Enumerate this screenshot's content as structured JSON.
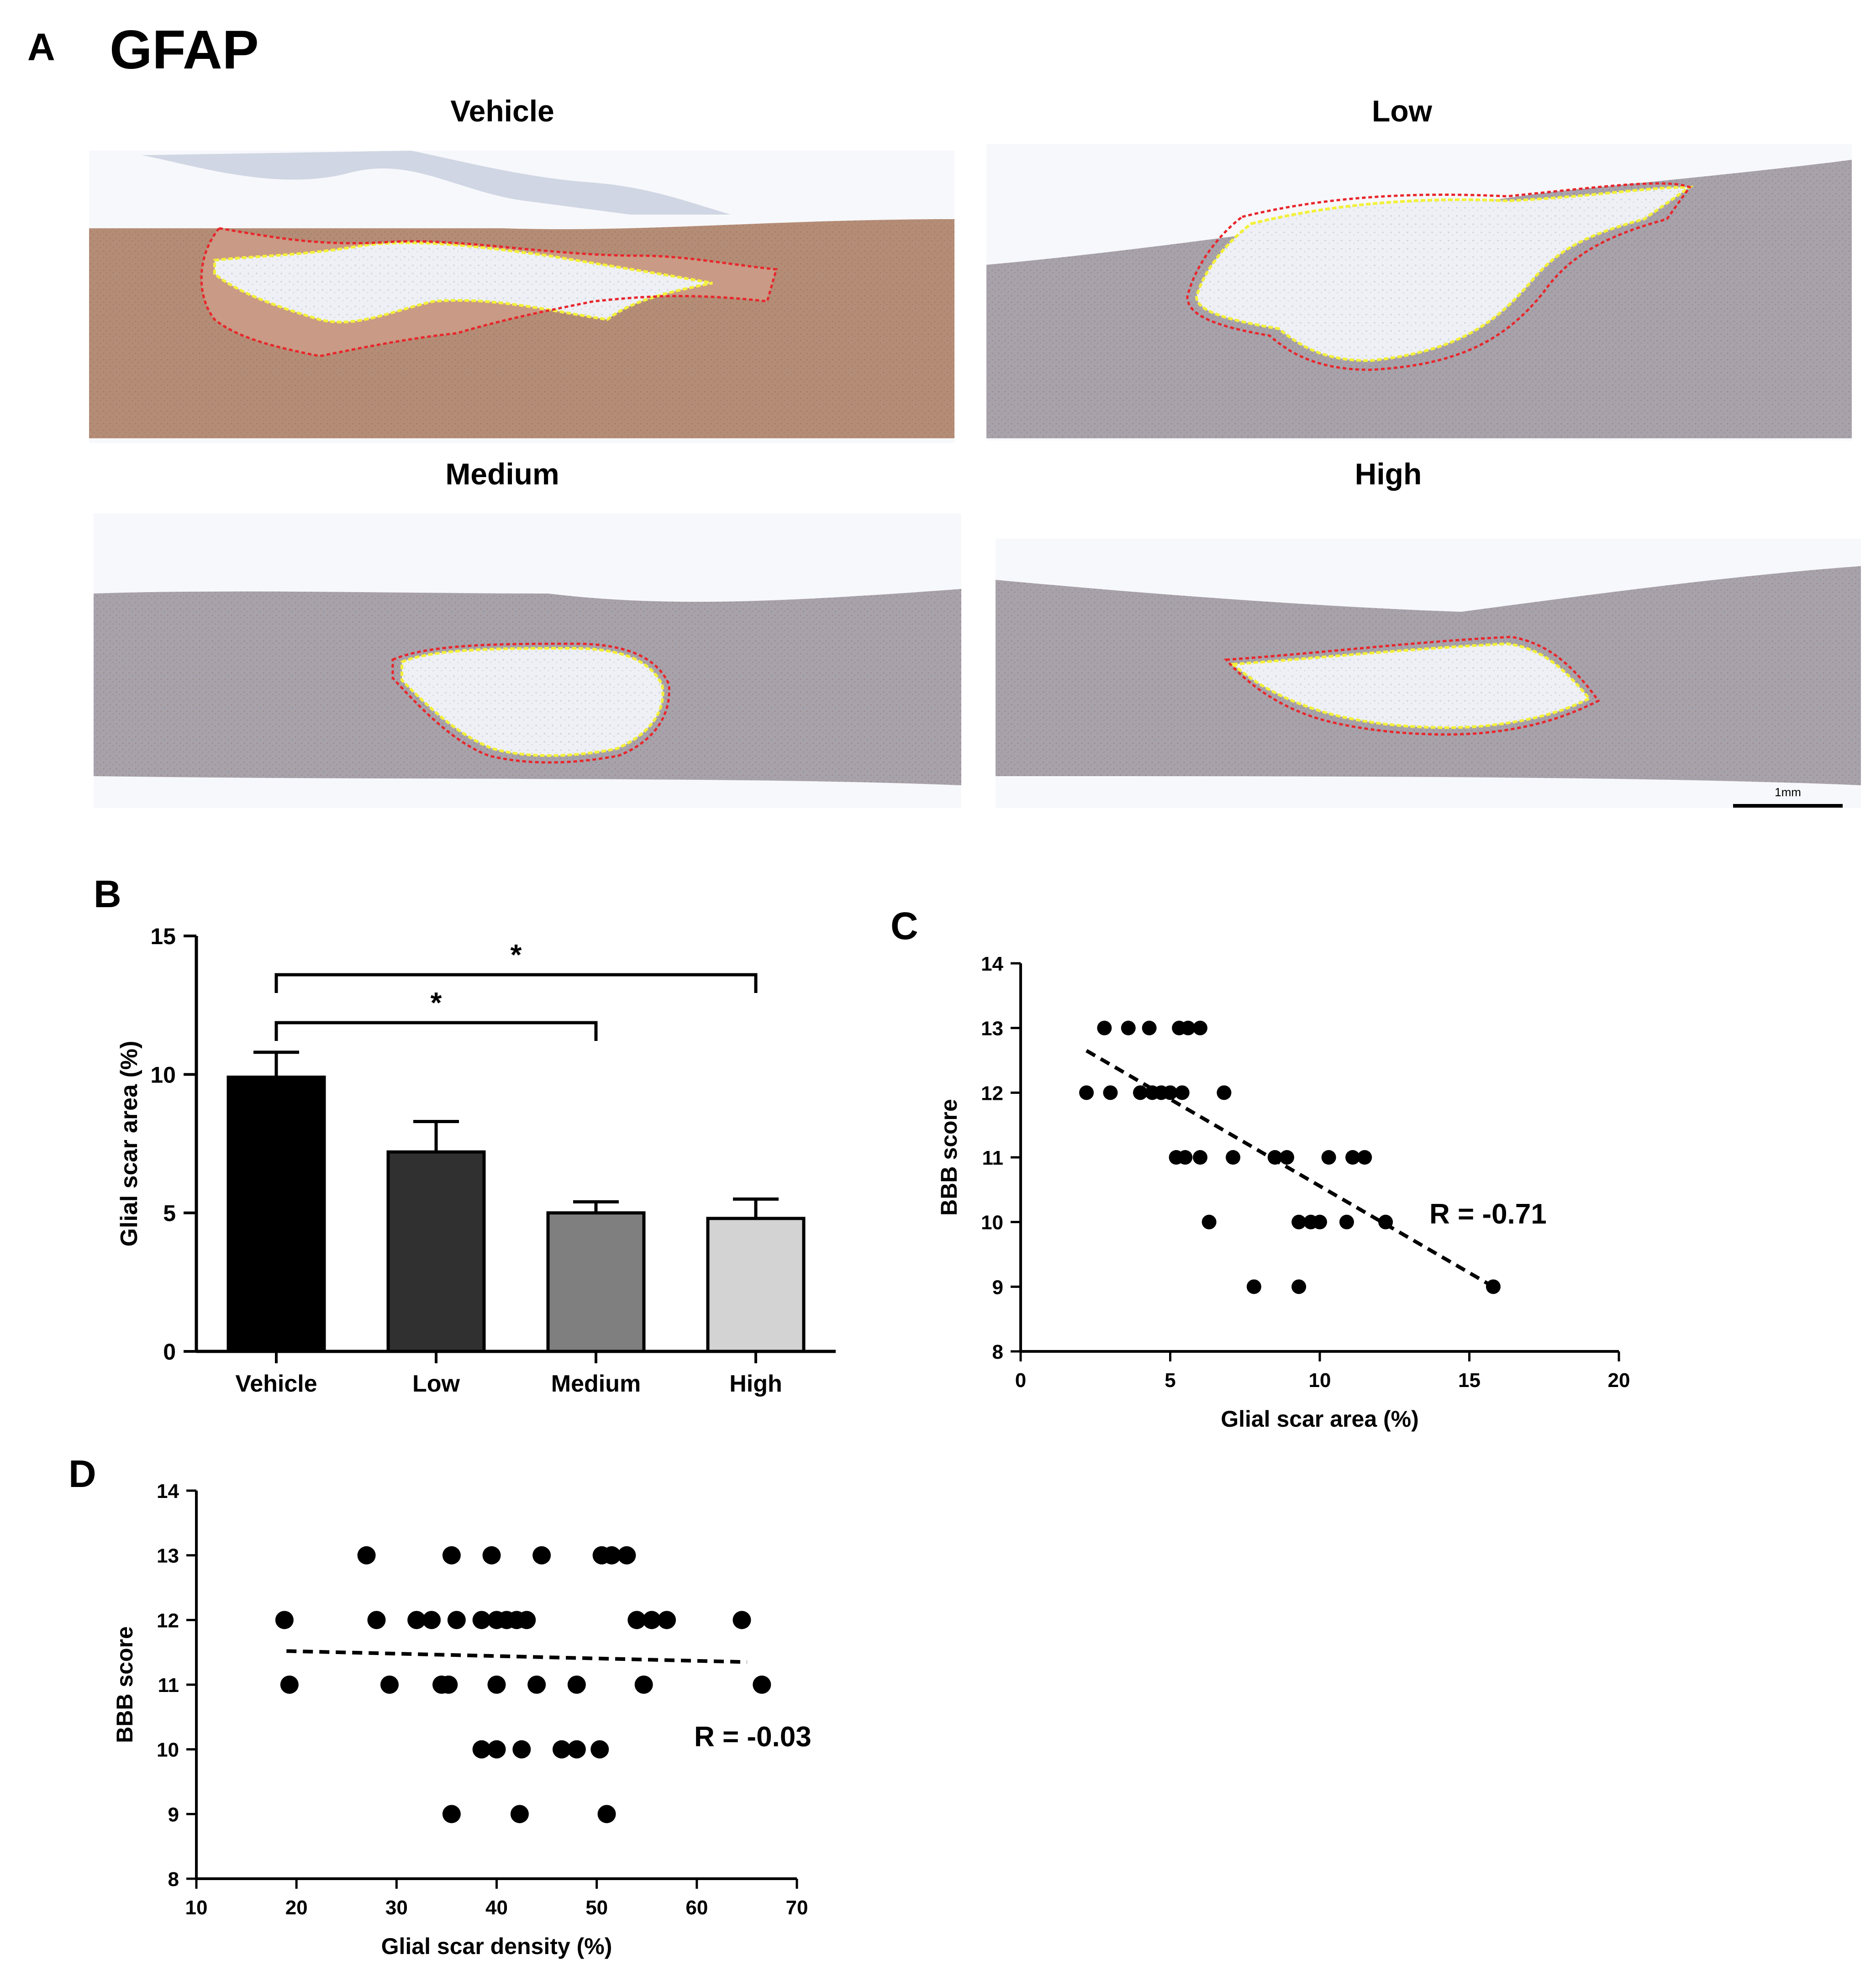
{
  "figure": {
    "panel_a_letter": "A",
    "panel_a_title": "GFAP",
    "panel_b_letter": "B",
    "panel_c_letter": "C",
    "panel_d_letter": "D",
    "colors": {
      "tissue_brown": "#b8927a",
      "tissue_grey": "#a7a2ab",
      "lesion_pale": "#eeeef2",
      "outline_red": "#e8262b",
      "outline_yellow": "#f3f03a"
    }
  },
  "micrographs": [
    {
      "label": "Vehicle"
    },
    {
      "label": "Low"
    },
    {
      "label": "Medium"
    },
    {
      "label": "High"
    }
  ],
  "scalebar": {
    "label": "1mm"
  },
  "chart_data": [
    {
      "panel": "B",
      "type": "bar",
      "categories": [
        "Vehicle",
        "Low",
        "Medium",
        "High"
      ],
      "values": [
        9.9,
        7.2,
        5.0,
        4.8
      ],
      "errors": [
        0.9,
        1.1,
        0.4,
        0.7
      ],
      "bar_colors": [
        "#000000",
        "#303030",
        "#7f7f7f",
        "#d3d3d3"
      ],
      "ylabel": "Glial scar area (%)",
      "xlabel": "",
      "ylim": [
        0,
        15
      ],
      "yticks": [
        0,
        5,
        10,
        15
      ],
      "significance": [
        {
          "from": "Vehicle",
          "to": "Medium",
          "label": "*"
        },
        {
          "from": "Vehicle",
          "to": "High",
          "label": "*"
        }
      ]
    },
    {
      "panel": "C",
      "type": "scatter",
      "xlabel": "Glial scar area (%)",
      "ylabel": "BBB score",
      "xlim": [
        0,
        20
      ],
      "ylim": [
        8,
        14
      ],
      "xticks": [
        0,
        5,
        10,
        15,
        20
      ],
      "yticks": [
        8,
        9,
        10,
        11,
        12,
        13,
        14
      ],
      "annotation": "R = -0.71",
      "trendline": {
        "x": [
          2.2,
          15.8
        ],
        "y": [
          12.65,
          9.0
        ]
      },
      "points": [
        [
          2.8,
          13
        ],
        [
          3.6,
          13
        ],
        [
          4.3,
          13
        ],
        [
          5.3,
          13
        ],
        [
          5.6,
          13
        ],
        [
          6.0,
          13
        ],
        [
          2.2,
          12
        ],
        [
          3.0,
          12
        ],
        [
          4.0,
          12
        ],
        [
          4.4,
          12
        ],
        [
          4.7,
          12
        ],
        [
          5.0,
          12
        ],
        [
          5.4,
          12
        ],
        [
          6.8,
          12
        ],
        [
          5.2,
          11
        ],
        [
          5.5,
          11
        ],
        [
          6.0,
          11
        ],
        [
          7.1,
          11
        ],
        [
          8.5,
          11
        ],
        [
          8.9,
          11
        ],
        [
          10.3,
          11
        ],
        [
          11.1,
          11
        ],
        [
          11.5,
          11
        ],
        [
          6.3,
          10
        ],
        [
          9.3,
          10
        ],
        [
          9.7,
          10
        ],
        [
          10.0,
          10
        ],
        [
          10.9,
          10
        ],
        [
          12.2,
          10
        ],
        [
          7.8,
          9
        ],
        [
          9.3,
          9
        ],
        [
          15.8,
          9
        ]
      ]
    },
    {
      "panel": "D",
      "type": "scatter",
      "xlabel": "Glial scar density (%)",
      "ylabel": "BBB score",
      "xlim": [
        10,
        70
      ],
      "ylim": [
        8,
        14
      ],
      "xticks": [
        10,
        20,
        30,
        40,
        50,
        60,
        70
      ],
      "yticks": [
        8,
        9,
        10,
        11,
        12,
        13,
        14
      ],
      "annotation": "R = -0.03",
      "trendline": {
        "x": [
          19,
          65
        ],
        "y": [
          11.52,
          11.35
        ]
      },
      "points": [
        [
          27,
          13
        ],
        [
          35.5,
          13
        ],
        [
          39.5,
          13
        ],
        [
          44.5,
          13
        ],
        [
          50.5,
          13
        ],
        [
          51.5,
          13
        ],
        [
          53,
          13
        ],
        [
          18.8,
          12
        ],
        [
          28,
          12
        ],
        [
          32,
          12
        ],
        [
          33.5,
          12
        ],
        [
          36,
          12
        ],
        [
          38.5,
          12
        ],
        [
          40,
          12
        ],
        [
          41,
          12
        ],
        [
          42,
          12
        ],
        [
          43,
          12
        ],
        [
          54,
          12
        ],
        [
          55.5,
          12
        ],
        [
          57,
          12
        ],
        [
          64.5,
          12
        ],
        [
          19.3,
          11
        ],
        [
          29.3,
          11
        ],
        [
          34.5,
          11
        ],
        [
          35.2,
          11
        ],
        [
          40,
          11
        ],
        [
          44,
          11
        ],
        [
          48,
          11
        ],
        [
          54.7,
          11
        ],
        [
          66.5,
          11
        ],
        [
          38.5,
          10
        ],
        [
          40,
          10
        ],
        [
          42.5,
          10
        ],
        [
          46.5,
          10
        ],
        [
          48,
          10
        ],
        [
          50.3,
          10
        ],
        [
          35.5,
          9
        ],
        [
          42.3,
          9
        ],
        [
          51,
          9
        ]
      ]
    }
  ]
}
